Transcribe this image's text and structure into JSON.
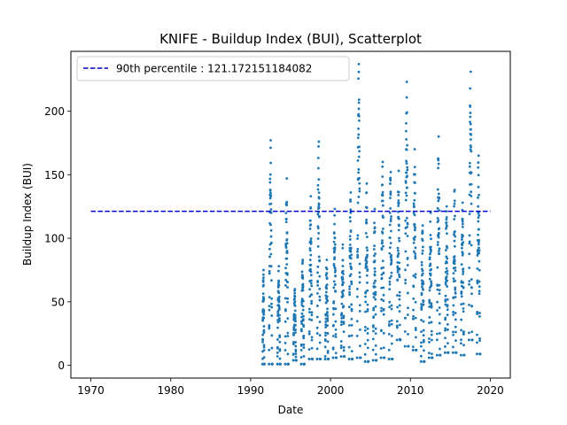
{
  "chart_data": {
    "type": "scatter",
    "title": "KNIFE - Buildup Index (BUI), Scatterplot",
    "xlabel": "Date",
    "ylabel": "Buildup Index (BUI)",
    "xlim": [
      1967.5,
      2022.5
    ],
    "ylim": [
      -10,
      247
    ],
    "x_ticks": [
      1970,
      1980,
      1990,
      2000,
      2010,
      2020
    ],
    "y_ticks": [
      0,
      50,
      100,
      150,
      200
    ],
    "x_tick_labels": [
      "1970",
      "1980",
      "1990",
      "2000",
      "2010",
      "2020"
    ],
    "y_tick_labels": [
      "0",
      "50",
      "100",
      "150",
      "200"
    ],
    "legend_position": "upper-left",
    "grid": false,
    "reference_line": {
      "label": "90th percentile : 121.172151184082",
      "value": 121.172151184082,
      "x_range": [
        1970,
        2020
      ],
      "color": "#0000cc",
      "style": "dashed"
    },
    "series": [
      {
        "color": "#1f77b4",
        "seasons": [
          {
            "year": 1991,
            "start": 1991.5,
            "end": 1991.72,
            "min": 1,
            "peak": 75
          },
          {
            "year": 1992,
            "start": 1992.3,
            "end": 1992.72,
            "min": 1,
            "peak": 177
          },
          {
            "year": 1993,
            "start": 1993.35,
            "end": 1993.72,
            "min": 1,
            "peak": 78
          },
          {
            "year": 1994,
            "start": 1994.33,
            "end": 1994.72,
            "min": 1,
            "peak": 147
          },
          {
            "year": 1995,
            "start": 1995.35,
            "end": 1995.72,
            "min": 4,
            "peak": 60
          },
          {
            "year": 1996,
            "start": 1996.33,
            "end": 1996.72,
            "min": 1,
            "peak": 83
          },
          {
            "year": 1997,
            "start": 1997.33,
            "end": 1997.74,
            "min": 5,
            "peak": 133
          },
          {
            "year": 1998,
            "start": 1998.33,
            "end": 1998.74,
            "min": 5,
            "peak": 176
          },
          {
            "year": 1999,
            "start": 1999.33,
            "end": 1999.74,
            "min": 5,
            "peak": 83
          },
          {
            "year": 2000,
            "start": 2000.33,
            "end": 2000.74,
            "min": 6,
            "peak": 123
          },
          {
            "year": 2001,
            "start": 2001.33,
            "end": 2001.74,
            "min": 7,
            "peak": 95
          },
          {
            "year": 2002,
            "start": 2002.33,
            "end": 2002.74,
            "min": 5,
            "peak": 136
          },
          {
            "year": 2003,
            "start": 2003.33,
            "end": 2003.76,
            "min": 6,
            "peak": 237
          },
          {
            "year": 2004,
            "start": 2004.33,
            "end": 2004.74,
            "min": 3,
            "peak": 143
          },
          {
            "year": 2005,
            "start": 2005.33,
            "end": 2005.74,
            "min": 4,
            "peak": 123
          },
          {
            "year": 2006,
            "start": 2006.33,
            "end": 2006.74,
            "min": 6,
            "peak": 160
          },
          {
            "year": 2007,
            "start": 2007.33,
            "end": 2007.74,
            "min": 5,
            "peak": 152
          },
          {
            "year": 2008,
            "start": 2008.33,
            "end": 2008.74,
            "min": 20,
            "peak": 153
          },
          {
            "year": 2009,
            "start": 2009.33,
            "end": 2009.76,
            "min": 15,
            "peak": 223
          },
          {
            "year": 2010,
            "start": 2010.33,
            "end": 2010.74,
            "min": 12,
            "peak": 170
          },
          {
            "year": 2011,
            "start": 2011.33,
            "end": 2011.74,
            "min": 3,
            "peak": 110
          },
          {
            "year": 2012,
            "start": 2012.33,
            "end": 2012.74,
            "min": 6,
            "peak": 120
          },
          {
            "year": 2013,
            "start": 2013.33,
            "end": 2013.74,
            "min": 8,
            "peak": 180
          },
          {
            "year": 2014,
            "start": 2014.33,
            "end": 2014.74,
            "min": 10,
            "peak": 125
          },
          {
            "year": 2015,
            "start": 2015.33,
            "end": 2015.74,
            "min": 10,
            "peak": 138
          },
          {
            "year": 2016,
            "start": 2016.33,
            "end": 2016.74,
            "min": 8,
            "peak": 128
          },
          {
            "year": 2017,
            "start": 2017.33,
            "end": 2017.76,
            "min": 20,
            "peak": 231
          },
          {
            "year": 2018,
            "start": 2018.33,
            "end": 2018.74,
            "min": 9,
            "peak": 165
          }
        ]
      }
    ]
  }
}
